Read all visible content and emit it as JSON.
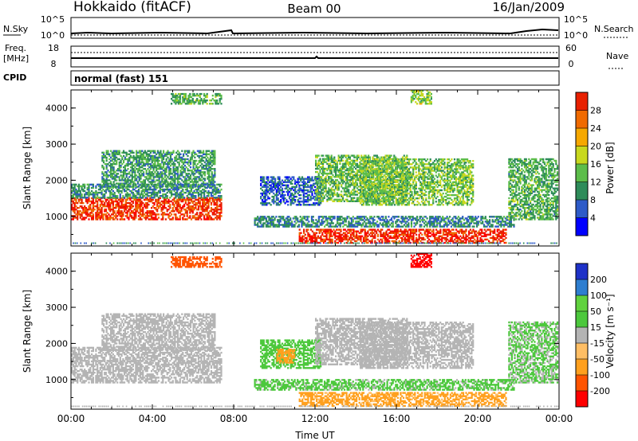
{
  "header": {
    "station": "Hokkaido (fitACF)",
    "beam": "Beam 00",
    "date": "16/Jan/2009"
  },
  "panel_labels": {
    "nsky": "N.Sky",
    "freq": "Freq.",
    "freq_unit": "[MHz]",
    "cpid": "CPID",
    "nsearch": "N.Search",
    "nave": "Nave",
    "cpid_value": "normal (fast) 151"
  },
  "small_axes": {
    "noise_ticks_left": [
      "10^5",
      "10^0"
    ],
    "noise_ticks_right": [
      "10^5",
      "10^0"
    ],
    "freq_ticks": [
      "18",
      "8"
    ],
    "nave_ticks": [
      "60",
      "0"
    ]
  },
  "colors": {
    "power": [
      "#0000ff",
      "#2e5bc8",
      "#2e8c5a",
      "#5cbd4a",
      "#c8d81e",
      "#f6a800",
      "#f06a00",
      "#e82000",
      "#ff0000"
    ],
    "velocity": [
      "#ff0000",
      "#ff5400",
      "#ffa01e",
      "#ffbe64",
      "#b4b4b4",
      "#4cc83c",
      "#60d23e",
      "#2e7ed0",
      "#1e32c8"
    ]
  },
  "chart_data": [
    {
      "type": "heatmap",
      "title": "",
      "quantity": "Power",
      "ylabel": "Slant Range [km]",
      "ylim": [
        180,
        4500
      ],
      "yticks": [
        "1000",
        "2000",
        "3000",
        "4000"
      ],
      "xlim": [
        "00:00",
        "24:00"
      ],
      "colorbar": {
        "label": "Power [dB]",
        "range": [
          0,
          32
        ],
        "ticks": [
          "4",
          "8",
          "12",
          "16",
          "20",
          "24",
          "28"
        ]
      },
      "regions": [
        {
          "t": [
            0,
            7.4
          ],
          "r": [
            900,
            1500
          ],
          "level": 26
        },
        {
          "t": [
            1.5,
            7.1
          ],
          "r": [
            1800,
            2800
          ],
          "level": 10
        },
        {
          "t": [
            0,
            7.4
          ],
          "r": [
            1500,
            1900
          ],
          "level": 9
        },
        {
          "t": [
            4.9,
            7.4
          ],
          "r": [
            4100,
            4400
          ],
          "level": 11
        },
        {
          "t": [
            9.3,
            12.3
          ],
          "r": [
            1300,
            2100
          ],
          "level": 6
        },
        {
          "t": [
            9.0,
            21.8
          ],
          "r": [
            700,
            1000
          ],
          "level": 8
        },
        {
          "t": [
            11.2,
            21.4
          ],
          "r": [
            250,
            650
          ],
          "level": 27
        },
        {
          "t": [
            12.0,
            16.5
          ],
          "r": [
            1400,
            2700
          ],
          "level": 12
        },
        {
          "t": [
            14.2,
            19.8
          ],
          "r": [
            1300,
            2600
          ],
          "level": 13
        },
        {
          "t": [
            16.7,
            17.7
          ],
          "r": [
            4100,
            4500
          ],
          "level": 14
        },
        {
          "t": [
            21.5,
            23.9
          ],
          "r": [
            900,
            2600
          ],
          "level": 11
        }
      ]
    },
    {
      "type": "heatmap",
      "title": "",
      "quantity": "Velocity",
      "ylabel": "Slant Range [km]",
      "xlabel": "Time UT",
      "ylim": [
        180,
        4500
      ],
      "yticks": [
        "1000",
        "2000",
        "3000",
        "4000"
      ],
      "xlim": [
        "00:00",
        "24:00"
      ],
      "xticks": [
        "00:00",
        "04:00",
        "08:00",
        "12:00",
        "16:00",
        "20:00",
        "00:00"
      ],
      "colorbar": {
        "label": "Velocity [m s⁻¹]",
        "range": [
          -250,
          250
        ],
        "ticks": [
          "-200",
          "-100",
          "-50",
          "-15",
          "15",
          "50",
          "100",
          "200"
        ]
      },
      "regions": [
        {
          "t": [
            0,
            7.4
          ],
          "r": [
            900,
            1500
          ],
          "level": 0
        },
        {
          "t": [
            1.5,
            7.1
          ],
          "r": [
            1800,
            2800
          ],
          "level": 0
        },
        {
          "t": [
            0,
            7.4
          ],
          "r": [
            1500,
            1900
          ],
          "level": 0
        },
        {
          "t": [
            4.9,
            7.4
          ],
          "r": [
            4100,
            4400
          ],
          "level": -120
        },
        {
          "t": [
            9.3,
            12.3
          ],
          "r": [
            1300,
            2100
          ],
          "level": 30
        },
        {
          "t": [
            10.1,
            11.0
          ],
          "r": [
            1450,
            1850
          ],
          "level": -80
        },
        {
          "t": [
            9.0,
            21.8
          ],
          "r": [
            700,
            1000
          ],
          "level": 25
        },
        {
          "t": [
            11.2,
            21.4
          ],
          "r": [
            250,
            650
          ],
          "level": -60
        },
        {
          "t": [
            12.0,
            16.5
          ],
          "r": [
            1400,
            2700
          ],
          "level": 0
        },
        {
          "t": [
            14.2,
            19.8
          ],
          "r": [
            1300,
            2600
          ],
          "level": 0
        },
        {
          "t": [
            16.7,
            17.7
          ],
          "r": [
            4100,
            4500
          ],
          "level": -230
        },
        {
          "t": [
            21.5,
            23.9
          ],
          "r": [
            900,
            2600
          ],
          "level": 20
        }
      ]
    }
  ]
}
